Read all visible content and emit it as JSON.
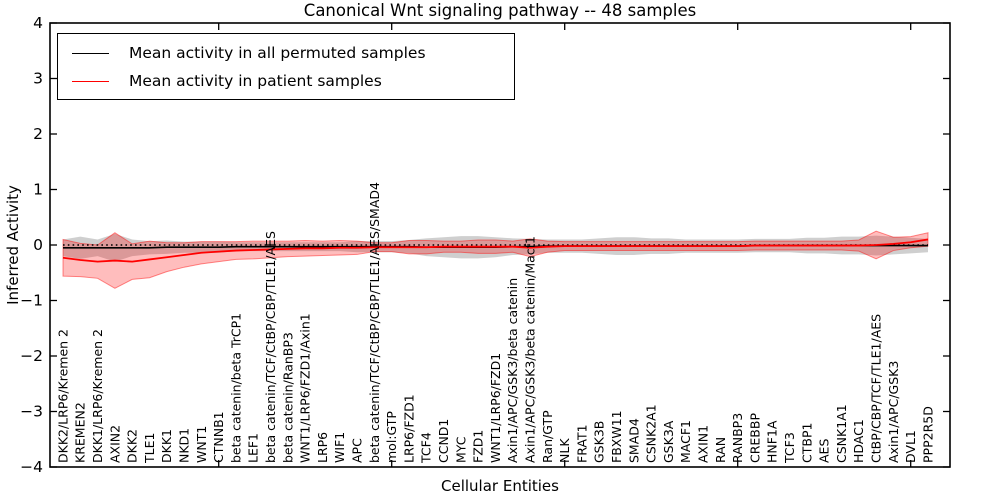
{
  "figure": {
    "title": "Canonical Wnt signaling pathway -- 48 samples",
    "xlabel": "Cellular Entities",
    "ylabel": "Inferred Activity"
  },
  "legend": {
    "items": [
      {
        "label": "Mean activity in all permuted samples",
        "color": "#000000"
      },
      {
        "label": "Mean activity in patient samples",
        "color": "#ff0000"
      }
    ]
  },
  "chart_data": {
    "type": "line",
    "title": "Canonical Wnt signaling pathway -- 48 samples",
    "xlabel": "Cellular Entities",
    "ylabel": "Inferred Activity",
    "ylim": [
      -4,
      4
    ],
    "yticks": [
      -4,
      -3,
      -2,
      -1,
      0,
      1,
      2,
      3,
      4
    ],
    "ytick_labels": [
      "−4",
      "−3",
      "−2",
      "−1",
      "0",
      "1",
      "2",
      "3",
      "4"
    ],
    "xticks_unlabeled": [
      10,
      20,
      30,
      40,
      50
    ],
    "grid": false,
    "legend_position": "upper left",
    "zero_line": {
      "y": 0,
      "style": "dotted",
      "color": "#000000"
    },
    "band_colors": {
      "permuted": "rgba(130,130,130,0.38)",
      "patient": "rgba(255,0,0,0.26)"
    },
    "categories": [
      "DKK2/LRP6/Kremen 2",
      "KREMEN2",
      "DKK1/LRP6/Kremen 2",
      "AXIN2",
      "DKK2",
      "TLE1",
      "DKK1",
      "NKD1",
      "WNT1",
      "CTNNB1",
      "beta catenin/beta TrCP1",
      "LEF1",
      "beta catenin/TCF/CtBP/CBP/TLE1/AES",
      "beta catenin/RanBP3",
      "WNT1/LRP6/FZD1/Axin1",
      "LRP6",
      "WIF1",
      "APC",
      "beta catenin/TCF/CtBP/CBP/TLE1/AES/SMAD4",
      "mol:GTP",
      "LRP6/FZD1",
      "TCF4",
      "CCND1",
      "MYC",
      "FZD1",
      "WNT1/LRP6/FZD1",
      "Axin1/APC/GSK3/beta catenin",
      "Axin1/APC/GSK3/beta catenin/Macf1",
      "Ran/GTP",
      "NLK",
      "FRAT1",
      "GSK3B",
      "FBXW11",
      "SMAD4",
      "CSNK2A1",
      "GSK3A",
      "MACF1",
      "AXIN1",
      "RAN",
      "RANBP3",
      "CREBBP",
      "HNF1A",
      "TCF3",
      "CTBP1",
      "AES",
      "CSNK1A1",
      "HDAC1",
      "CtBP/CBP/TCF/TLE1/AES",
      "Axin1/APC/GSK3",
      "DVL1",
      "PPP2R5D"
    ],
    "series": [
      {
        "name": "Mean activity in all permuted samples",
        "color": "#000000",
        "values": [
          -0.05,
          -0.05,
          -0.05,
          -0.05,
          -0.05,
          -0.05,
          -0.04,
          -0.04,
          -0.04,
          -0.04,
          -0.03,
          -0.03,
          -0.03,
          -0.03,
          -0.03,
          -0.03,
          -0.03,
          -0.03,
          -0.03,
          -0.03,
          -0.03,
          -0.04,
          -0.04,
          -0.04,
          -0.04,
          -0.04,
          -0.03,
          -0.03,
          -0.02,
          -0.02,
          -0.02,
          -0.02,
          -0.02,
          -0.02,
          -0.02,
          -0.02,
          -0.02,
          -0.02,
          -0.02,
          -0.02,
          -0.01,
          -0.01,
          -0.01,
          -0.01,
          -0.01,
          -0.01,
          -0.01,
          -0.01,
          -0.01,
          -0.01,
          -0.01
        ],
        "std": [
          0.15,
          0.2,
          0.15,
          0.25,
          0.15,
          0.12,
          0.12,
          0.1,
          0.1,
          0.1,
          0.08,
          0.08,
          0.08,
          0.08,
          0.08,
          0.08,
          0.08,
          0.1,
          0.1,
          0.1,
          0.12,
          0.16,
          0.18,
          0.2,
          0.2,
          0.18,
          0.15,
          0.14,
          0.12,
          0.12,
          0.12,
          0.14,
          0.16,
          0.16,
          0.14,
          0.14,
          0.12,
          0.12,
          0.12,
          0.12,
          0.12,
          0.12,
          0.12,
          0.14,
          0.14,
          0.16,
          0.16,
          0.18,
          0.16,
          0.14,
          0.12
        ]
      },
      {
        "name": "Mean activity in patient samples",
        "color": "#ff0000",
        "values": [
          -0.23,
          -0.27,
          -0.3,
          -0.28,
          -0.3,
          -0.26,
          -0.22,
          -0.18,
          -0.14,
          -0.12,
          -0.1,
          -0.09,
          -0.08,
          -0.07,
          -0.06,
          -0.06,
          -0.05,
          -0.05,
          -0.04,
          -0.04,
          -0.04,
          -0.04,
          -0.03,
          -0.03,
          -0.03,
          -0.03,
          -0.03,
          -0.05,
          -0.03,
          -0.02,
          -0.02,
          -0.02,
          -0.02,
          -0.02,
          -0.02,
          -0.02,
          -0.02,
          -0.02,
          -0.02,
          -0.02,
          -0.01,
          -0.01,
          -0.01,
          -0.01,
          -0.01,
          -0.01,
          -0.01,
          0.0,
          0.02,
          0.05,
          0.1
        ],
        "std": [
          0.33,
          0.3,
          0.3,
          0.5,
          0.32,
          0.33,
          0.26,
          0.22,
          0.2,
          0.18,
          0.16,
          0.16,
          0.15,
          0.14,
          0.14,
          0.13,
          0.13,
          0.12,
          0.08,
          0.08,
          0.12,
          0.12,
          0.1,
          0.1,
          0.12,
          0.12,
          0.1,
          0.16,
          0.1,
          0.08,
          0.08,
          0.08,
          0.08,
          0.08,
          0.08,
          0.08,
          0.08,
          0.08,
          0.08,
          0.08,
          0.08,
          0.08,
          0.08,
          0.08,
          0.08,
          0.08,
          0.1,
          0.25,
          0.12,
          0.1,
          0.12
        ]
      }
    ]
  }
}
